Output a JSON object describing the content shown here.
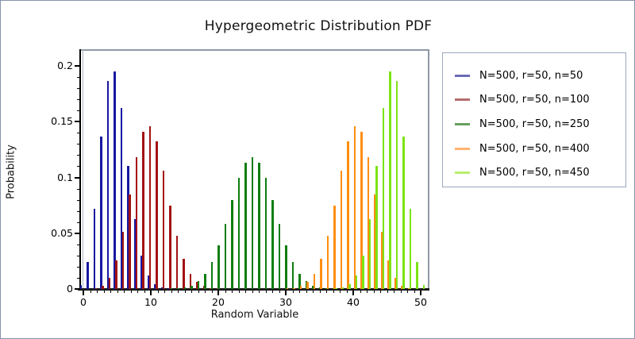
{
  "title": "Hypergeometric Distribution PDF",
  "axes": {
    "xlabel": "Random Variable",
    "ylabel": "Probability",
    "x_ticks": [
      {
        "label": "0",
        "value": 0
      },
      {
        "label": "10",
        "value": 10
      },
      {
        "label": "20",
        "value": 20
      },
      {
        "label": "30",
        "value": 30
      },
      {
        "label": "40",
        "value": 40
      },
      {
        "label": "50",
        "value": 50
      }
    ],
    "y_ticks": [
      {
        "label": "0",
        "value": 0
      },
      {
        "label": "0.05",
        "value": 0.05
      },
      {
        "label": "0.1",
        "value": 0.1
      },
      {
        "label": "0.15",
        "value": 0.15
      },
      {
        "label": "0.2",
        "value": 0.2
      }
    ]
  },
  "legend": {
    "entries": [
      {
        "label": "N=500, r=50, n=50",
        "swatch_color": "#6b6bb8"
      },
      {
        "label": "N=500, r=50, n=100",
        "swatch_color": "#b46e6e"
      },
      {
        "label": "N=500, r=50, n=250",
        "swatch_color": "#679f60"
      },
      {
        "label": "N=500, r=50, n=400",
        "swatch_color": "#ffb46e"
      },
      {
        "label": "N=500, r=50, n=450",
        "swatch_color": "#b8ef6e"
      }
    ]
  },
  "colors": {
    "frame": "#8e99a6",
    "border": "#8494ad",
    "series": [
      "#1717a0",
      "#a31212",
      "#0d7d0d",
      "#ff8e0e",
      "#7ce314"
    ]
  },
  "chart_data": {
    "type": "bar",
    "title": "Hypergeometric Distribution PDF",
    "xlabel": "Random Variable",
    "ylabel": "Probability",
    "xlim": [
      -0.6,
      51.3
    ],
    "ylim": [
      0,
      0.215
    ],
    "grid": false,
    "legend_position": "outside-right",
    "series": [
      {
        "name": "N=500, r=50, n=50",
        "color": "#1717a0",
        "data": [
          [
            0,
            0.0039
          ],
          [
            1,
            0.024
          ],
          [
            2,
            0.0717
          ],
          [
            3,
            0.1366
          ],
          [
            4,
            0.1867
          ],
          [
            5,
            0.1951
          ],
          [
            6,
            0.1622
          ],
          [
            7,
            0.1102
          ],
          [
            8,
            0.0624
          ],
          [
            9,
            0.0299
          ],
          [
            10,
            0.0123
          ],
          [
            11,
            0.0043
          ],
          [
            12,
            0.0013
          ],
          [
            13,
            0.0004
          ]
        ]
      },
      {
        "name": "N=500, r=50, n=100",
        "color": "#a31212",
        "data": [
          [
            2,
            0.0007
          ],
          [
            3,
            0.0032
          ],
          [
            4,
            0.0103
          ],
          [
            5,
            0.0255
          ],
          [
            6,
            0.0511
          ],
          [
            7,
            0.0845
          ],
          [
            8,
            0.118
          ],
          [
            9,
            0.1411
          ],
          [
            10,
            0.1462
          ],
          [
            11,
            0.1326
          ],
          [
            12,
            0.1059
          ],
          [
            13,
            0.0751
          ],
          [
            14,
            0.0474
          ],
          [
            15,
            0.0268
          ],
          [
            16,
            0.0136
          ],
          [
            17,
            0.0062
          ],
          [
            18,
            0.0026
          ],
          [
            19,
            0.001
          ],
          [
            20,
            0.0003
          ]
        ]
      },
      {
        "name": "N=500, r=50, n=250",
        "color": "#0d7d0d",
        "data": [
          [
            13,
            0.0002
          ],
          [
            14,
            0.0005
          ],
          [
            15,
            0.0014
          ],
          [
            16,
            0.0032
          ],
          [
            17,
            0.0069
          ],
          [
            18,
            0.0136
          ],
          [
            19,
            0.0243
          ],
          [
            20,
            0.0395
          ],
          [
            21,
            0.0587
          ],
          [
            22,
            0.0798
          ],
          [
            23,
            0.0994
          ],
          [
            24,
            0.1133
          ],
          [
            25,
            0.1183
          ],
          [
            26,
            0.1133
          ],
          [
            27,
            0.0994
          ],
          [
            28,
            0.0798
          ],
          [
            29,
            0.0587
          ],
          [
            30,
            0.0395
          ],
          [
            31,
            0.0243
          ],
          [
            32,
            0.0136
          ],
          [
            33,
            0.0069
          ],
          [
            34,
            0.0032
          ],
          [
            35,
            0.0014
          ],
          [
            36,
            0.0005
          ],
          [
            37,
            0.0002
          ]
        ]
      },
      {
        "name": "N=500, r=50, n=400",
        "color": "#ff8e0e",
        "data": [
          [
            30,
            0.0003
          ],
          [
            31,
            0.001
          ],
          [
            32,
            0.0026
          ],
          [
            33,
            0.0062
          ],
          [
            34,
            0.0136
          ],
          [
            35,
            0.0268
          ],
          [
            36,
            0.0474
          ],
          [
            37,
            0.0751
          ],
          [
            38,
            0.1059
          ],
          [
            39,
            0.1326
          ],
          [
            40,
            0.1462
          ],
          [
            41,
            0.1411
          ],
          [
            42,
            0.118
          ],
          [
            43,
            0.0845
          ],
          [
            44,
            0.0511
          ],
          [
            45,
            0.0255
          ],
          [
            46,
            0.0103
          ],
          [
            47,
            0.0032
          ],
          [
            48,
            0.0007
          ]
        ]
      },
      {
        "name": "N=500, r=50, n=450",
        "color": "#7ce314",
        "data": [
          [
            37,
            0.0004
          ],
          [
            38,
            0.0013
          ],
          [
            39,
            0.0043
          ],
          [
            40,
            0.0123
          ],
          [
            41,
            0.0299
          ],
          [
            42,
            0.0624
          ],
          [
            43,
            0.1102
          ],
          [
            44,
            0.1622
          ],
          [
            45,
            0.1951
          ],
          [
            46,
            0.1867
          ],
          [
            47,
            0.1366
          ],
          [
            48,
            0.0717
          ],
          [
            49,
            0.024
          ],
          [
            50,
            0.0039
          ]
        ]
      }
    ]
  }
}
